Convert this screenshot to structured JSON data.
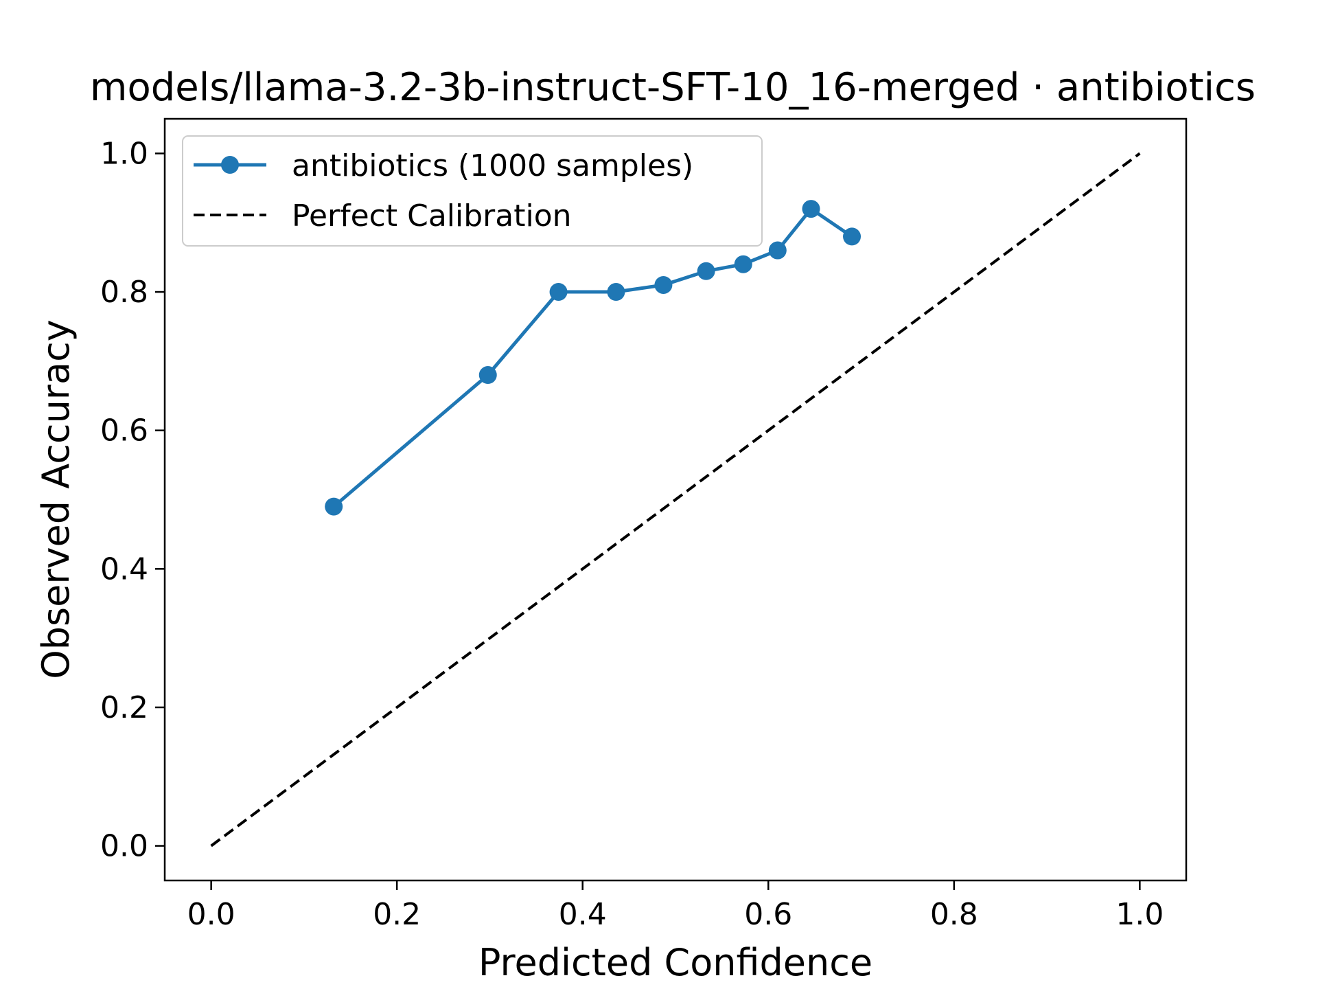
{
  "chart_data": {
    "type": "line",
    "title": "models/llama-3.2-3b-instruct-SFT-10_16-merged · antibiotics",
    "xlabel": "Predicted Confidence",
    "ylabel": "Observed Accuracy",
    "xlim": [
      -0.05,
      1.05
    ],
    "ylim": [
      -0.05,
      1.05
    ],
    "x_ticks": [
      "0.0",
      "0.2",
      "0.4",
      "0.6",
      "0.8",
      "1.0"
    ],
    "y_ticks": [
      "0.0",
      "0.2",
      "0.4",
      "0.6",
      "0.8",
      "1.0"
    ],
    "grid": false,
    "legend_position": "top-left",
    "series": [
      {
        "name": "antibiotics (1000 samples)",
        "color": "#1f77b4",
        "style": "solid-with-markers",
        "x": [
          0.132,
          0.298,
          0.374,
          0.436,
          0.487,
          0.533,
          0.573,
          0.61,
          0.646,
          0.69
        ],
        "y": [
          0.49,
          0.68,
          0.8,
          0.8,
          0.81,
          0.83,
          0.84,
          0.86,
          0.92,
          0.88
        ]
      },
      {
        "name": "Perfect Calibration",
        "color": "#000000",
        "style": "dashed",
        "x": [
          0,
          1
        ],
        "y": [
          0,
          1
        ]
      }
    ]
  }
}
